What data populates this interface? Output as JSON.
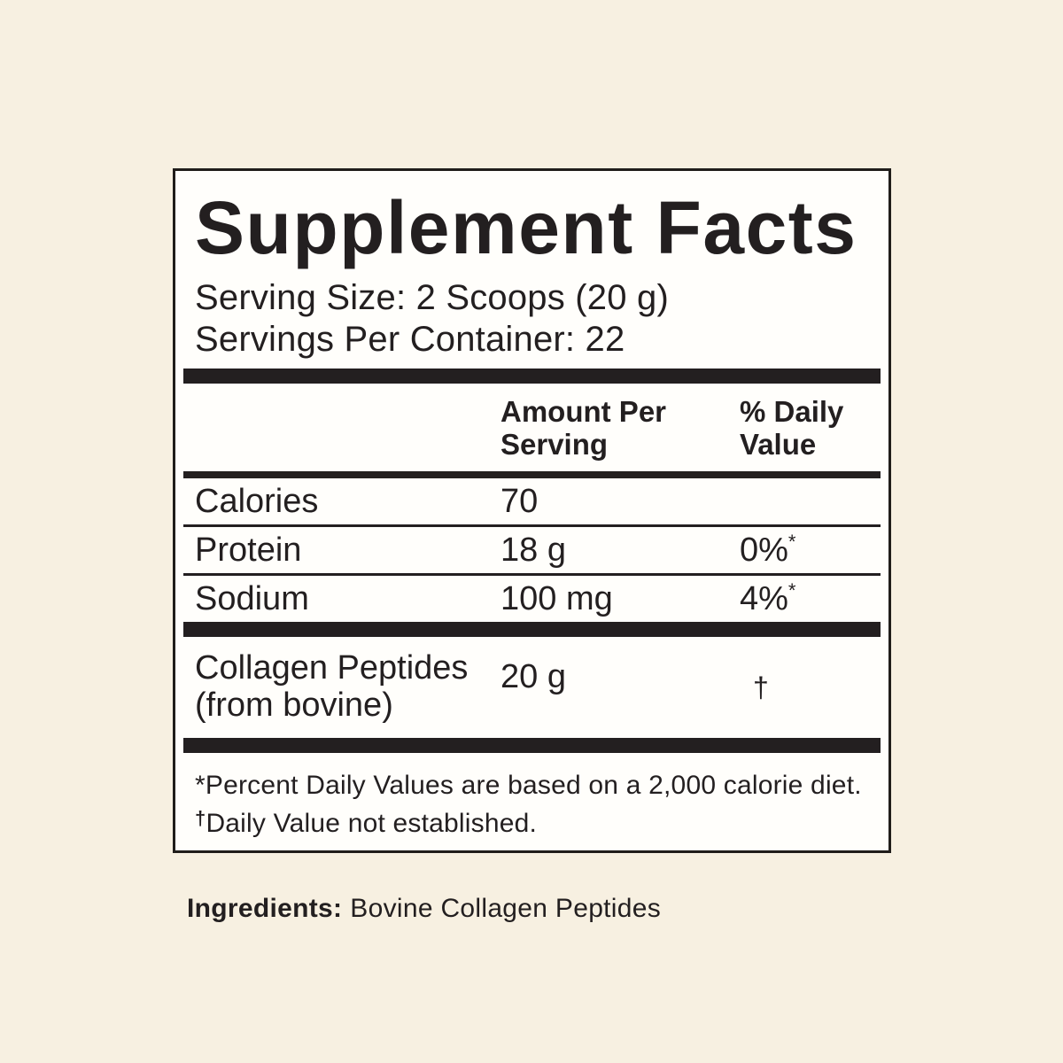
{
  "colors": {
    "page_background": "#f7f0e1",
    "panel_background": "#fffefb",
    "ink": "#231f20"
  },
  "label": {
    "title": "Supplement Facts",
    "serving_size": "Serving Size: 2 Scoops (20 g)",
    "servings_per_container": "Servings Per Container: 22",
    "columns": {
      "amount": "Amount Per Serving",
      "dv": "% Daily Value"
    },
    "rows": [
      {
        "name": "Calories",
        "amount": "70",
        "dv": "",
        "dv_sup": ""
      },
      {
        "name": "Protein",
        "amount": "18 g",
        "dv": "0%",
        "dv_sup": "*"
      },
      {
        "name": "Sodium",
        "amount": "100 mg",
        "dv": "4%",
        "dv_sup": "*"
      }
    ],
    "other_row": {
      "name_line1": "Collagen Peptides",
      "name_line2": "(from bovine)",
      "amount": "20 g",
      "dv": "†"
    },
    "footnotes": [
      {
        "marker": "*",
        "text": "Percent Daily Values are based on a 2,000 calorie diet."
      },
      {
        "marker": "†",
        "text": "Daily Value not established."
      }
    ]
  },
  "ingredients": {
    "label": "Ingredients:",
    "text": "Bovine Collagen Peptides"
  }
}
